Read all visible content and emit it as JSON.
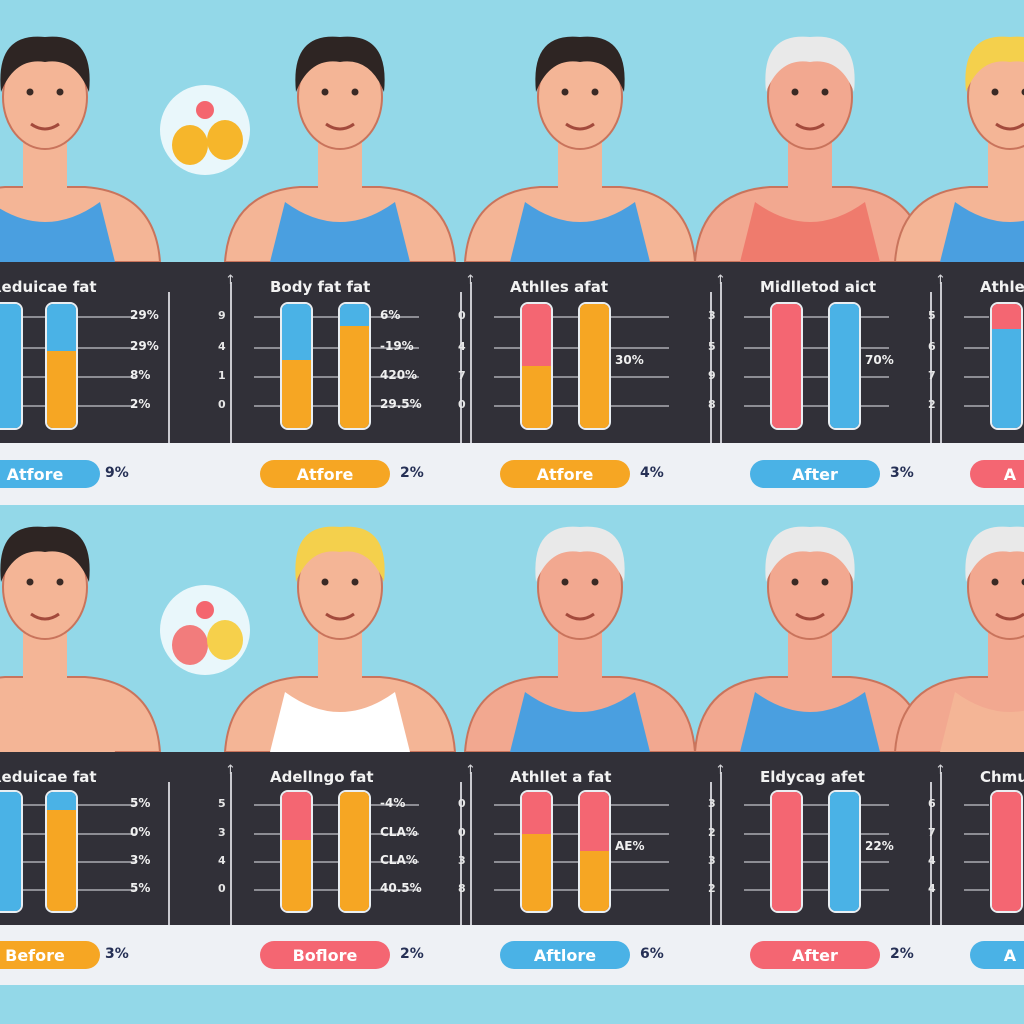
{
  "colors": {
    "blue": "#4ab2e6",
    "orange": "#f6a623",
    "red": "#f46672",
    "background": "#93d8e8",
    "panel": "#313038",
    "strip": "#eef1f5"
  },
  "rows": [
    {
      "people": [
        {
          "hair": "#2e2523",
          "shirt": "#4a9fe0",
          "skin": "#f4b596"
        },
        {
          "hair": "#2e2523",
          "shirt": "#4a9fe0",
          "skin": "#f4b596"
        },
        {
          "hair": "#2e2523",
          "shirt": "#4a9fe0",
          "skin": "#f4b596"
        },
        {
          "hair": "#e9e9e9",
          "shirt": "#ef7b6d",
          "skin": "#f2a890"
        },
        {
          "hair": "#f4d04c",
          "shirt": "#4a9fe0",
          "skin": "#f4b596"
        }
      ],
      "cells": [
        {
          "title": "Reduicae fat",
          "ticks": [],
          "labels": [
            "29%",
            "29%",
            "8%",
            "2%"
          ],
          "bars": [
            {
              "top": "blue",
              "bottom": "blue",
              "split": 1
            },
            {
              "top": "blue",
              "bottom": "orange",
              "split": 0.62
            }
          ],
          "pill": {
            "label": "Atfore",
            "color": "blue"
          },
          "pct": "9%"
        },
        {
          "title": "Body fat fat",
          "ticks": [
            "9",
            "4",
            "1",
            "0"
          ],
          "labels": [
            "6%",
            "-19%",
            "420%",
            "29.5%"
          ],
          "bars": [
            {
              "top": "blue",
              "bottom": "orange",
              "split": 0.55
            },
            {
              "top": "blue",
              "bottom": "orange",
              "split": 0.82
            }
          ],
          "pill": {
            "label": "Atfore",
            "color": "orange"
          },
          "pct": "2%"
        },
        {
          "title": "Athlles afat",
          "ticks": [
            "0",
            "4",
            "7",
            "0"
          ],
          "labels": [
            "30%"
          ],
          "bars": [
            {
              "top": "red",
              "bottom": "orange",
              "split": 0.5
            },
            {
              "top": "orange",
              "bottom": "orange",
              "split": 1
            }
          ],
          "pill": {
            "label": "Atfore",
            "color": "orange"
          },
          "pct": "4%"
        },
        {
          "title": "Midlletod aict",
          "ticks": [
            "3",
            "5",
            "9",
            "8"
          ],
          "labels": [
            "70%"
          ],
          "bars": [
            {
              "top": "red",
              "bottom": "red",
              "split": 1
            },
            {
              "top": "blue",
              "bottom": "blue",
              "split": 1
            }
          ],
          "pill": {
            "label": "After",
            "color": "blue"
          },
          "pct": "3%"
        },
        {
          "title": "Athle",
          "ticks": [
            "5",
            "6",
            "7",
            "2"
          ],
          "labels": [],
          "bars": [
            {
              "top": "red",
              "bottom": "blue",
              "split": 0.8
            }
          ],
          "pill": {
            "label": "A",
            "color": "red"
          },
          "pct": ""
        }
      ]
    },
    {
      "people": [
        {
          "hair": "#2e2523",
          "shirt": "#f4b596",
          "skin": "#f4b596"
        },
        {
          "hair": "#f4d04c",
          "shirt": "#ffffff",
          "skin": "#f4b596"
        },
        {
          "hair": "#e9e9e9",
          "shirt": "#4a9fe0",
          "skin": "#f2a890"
        },
        {
          "hair": "#e9e9e9",
          "shirt": "#4a9fe0",
          "skin": "#f2a890"
        },
        {
          "hair": "#e9e9e9",
          "shirt": "#f4b596",
          "skin": "#f2a890"
        }
      ],
      "cells": [
        {
          "title": "Reduicae fat",
          "ticks": [],
          "labels": [
            "5%",
            "0%",
            "3%",
            "5%"
          ],
          "bars": [
            {
              "top": "blue",
              "bottom": "blue",
              "split": 1
            },
            {
              "top": "blue",
              "bottom": "orange",
              "split": 0.85
            }
          ],
          "pill": {
            "label": "Before",
            "color": "orange"
          },
          "pct": "3%"
        },
        {
          "title": "Adellngo fat",
          "ticks": [
            "5",
            "3",
            "4",
            "0"
          ],
          "labels": [
            "-4%",
            "CLA%",
            "CLA%",
            "40.5%"
          ],
          "bars": [
            {
              "top": "red",
              "bottom": "orange",
              "split": 0.6
            },
            {
              "top": "orange",
              "bottom": "orange",
              "split": 1
            }
          ],
          "pill": {
            "label": "Boflore",
            "color": "red"
          },
          "pct": "2%"
        },
        {
          "title": "Athllet a fat",
          "ticks": [
            "0",
            "0",
            "3",
            "8"
          ],
          "labels": [
            "AE%"
          ],
          "bars": [
            {
              "top": "red",
              "bottom": "orange",
              "split": 0.65
            },
            {
              "top": "red",
              "bottom": "orange",
              "split": 0.5
            }
          ],
          "pill": {
            "label": "Aftlore",
            "color": "blue"
          },
          "pct": "6%"
        },
        {
          "title": "Eldycag afet",
          "ticks": [
            "3",
            "2",
            "3",
            "2"
          ],
          "labels": [
            "22%"
          ],
          "bars": [
            {
              "top": "red",
              "bottom": "red",
              "split": 1
            },
            {
              "top": "blue",
              "bottom": "blue",
              "split": 1
            }
          ],
          "pill": {
            "label": "After",
            "color": "red"
          },
          "pct": "2%"
        },
        {
          "title": "Chmu",
          "ticks": [
            "6",
            "7",
            "4",
            "4"
          ],
          "labels": [],
          "bars": [
            {
              "top": "red",
              "bottom": "red",
              "split": 1
            }
          ],
          "pill": {
            "label": "A",
            "color": "blue"
          },
          "pct": ""
        }
      ]
    }
  ]
}
